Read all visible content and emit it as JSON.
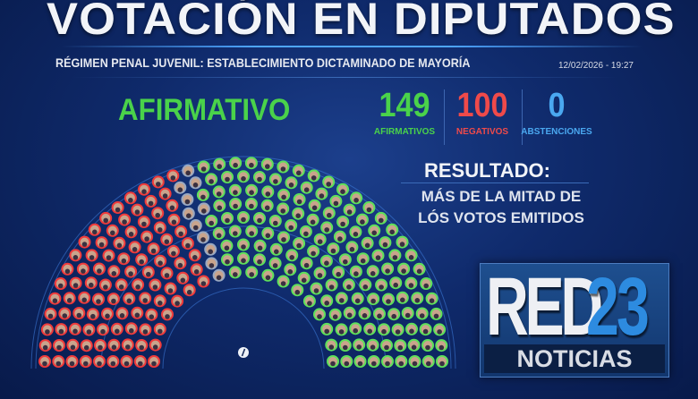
{
  "header": {
    "title": "VOTACIÓN EN DIPUTADOS",
    "subtitle": "RÉGIMEN PENAL JUVENIL: ESTABLECIMIENTO DICTAMINADO DE MAYORÍA",
    "datetime": "12/02/2026 - 19:27"
  },
  "verdict": {
    "label": "AFIRMATIVO",
    "color": "#4ad24a"
  },
  "counts": [
    {
      "value": "149",
      "label": "AFIRMATIVOS",
      "color": "#4ad24a"
    },
    {
      "value": "100",
      "label": "NEGATIVOS",
      "color": "#ef4a4a"
    },
    {
      "value": "0",
      "label": "ABSTENCIONES",
      "color": "#4aa8f0"
    }
  ],
  "result": {
    "heading": "RESULTADO:",
    "line1": "MÁS DE LA MITAD DE",
    "line2": "LÓS VOTOS EMITIDOS"
  },
  "hemicycle": {
    "afirmativos": 149,
    "negativos": 100,
    "abstenciones": 0,
    "colors": {
      "afirmativo": "#5fe05a",
      "negativo": "#ef3b3b",
      "ausente": "#9aa8c0"
    },
    "center_icon": "info-icon"
  },
  "logo": {
    "brand": "RED",
    "number": "23",
    "tag": "NOTICIAS"
  }
}
